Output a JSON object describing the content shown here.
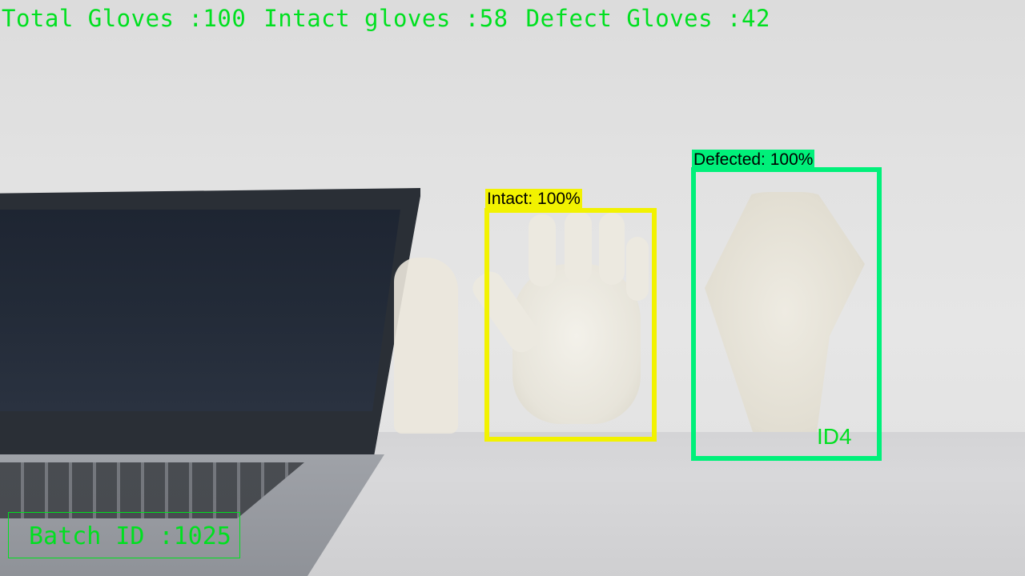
{
  "stats": {
    "total": "Total Gloves :100",
    "intact": "Intact gloves :58",
    "defect": "Defect Gloves :42"
  },
  "detections": {
    "intact_label": "Intact: 100%",
    "defect_label": "Defected: 100%",
    "defect_track_id": "ID4"
  },
  "batch": {
    "label": "Batch ID :1025"
  },
  "colors": {
    "overlay_text": "#00e020",
    "intact_box": "#f2f200",
    "defect_box": "#00f07a"
  }
}
